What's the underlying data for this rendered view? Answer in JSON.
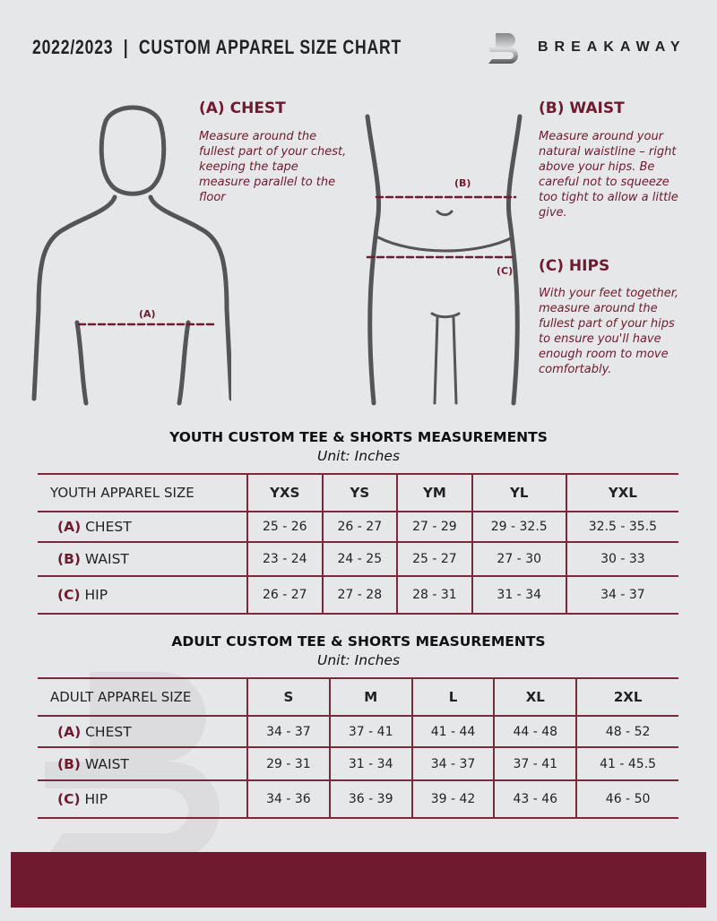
{
  "header": {
    "title": "2022/2023  |  CUSTOM APPAREL SIZE CHART",
    "brand": "BREAKAWAY",
    "logo_letter": "B"
  },
  "colors": {
    "accent": "#6f1a2f",
    "background": "#e6e7e9"
  },
  "guides": {
    "chest": {
      "title": "(A) CHEST",
      "text": "Measure around the fullest part of your chest, keeping the tape measure parallel to the floor",
      "marker": "(A)"
    },
    "waist": {
      "title": "(B) WAIST",
      "text": "Measure around your natural waistline – right above your hips. Be careful not to squeeze too tight to allow a little give.",
      "marker": "(B)"
    },
    "hips": {
      "title": "(C) HIPS",
      "text": "With your feet together, measure around the fullest part of your hips to ensure you'll have enough room to move comfortably.",
      "marker": "(C)"
    }
  },
  "youth": {
    "title": "YOUTH CUSTOM TEE & SHORTS MEASUREMENTS",
    "unit": "Unit: Inches",
    "header": [
      "YOUTH APPAREL SIZE",
      "YXS",
      "YS",
      "YM",
      "YL",
      "YXL"
    ],
    "rows": [
      {
        "letter": "(A)",
        "label": "CHEST",
        "values": [
          "25 - 26",
          "26 - 27",
          "27 - 29",
          "29 - 32.5",
          "32.5 - 35.5"
        ]
      },
      {
        "letter": "(B)",
        "label": "WAIST",
        "values": [
          "23 - 24",
          "24 - 25",
          "25 - 27",
          "27 - 30",
          "30 - 33"
        ]
      },
      {
        "letter": "(C)",
        "label": "HIP",
        "values": [
          "26 - 27",
          "27 - 28",
          "28 - 31",
          "31 - 34",
          "34 - 37"
        ]
      }
    ]
  },
  "adult": {
    "title": "ADULT CUSTOM TEE & SHORTS MEASUREMENTS",
    "unit": "Unit: Inches",
    "header": [
      "ADULT APPAREL SIZE",
      "S",
      "M",
      "L",
      "XL",
      "2XL"
    ],
    "rows": [
      {
        "letter": "(A)",
        "label": "CHEST",
        "values": [
          "34 - 37",
          "37 - 41",
          "41 - 44",
          "44 - 48",
          "48 - 52"
        ]
      },
      {
        "letter": "(B)",
        "label": "WAIST",
        "values": [
          "29 - 31",
          "31 - 34",
          "34 - 37",
          "37 - 41",
          "41 - 45.5"
        ]
      },
      {
        "letter": "(C)",
        "label": "HIP",
        "values": [
          "34 - 36",
          "36 - 39",
          "39 - 42",
          "43 - 46",
          "46 - 50"
        ]
      }
    ]
  }
}
